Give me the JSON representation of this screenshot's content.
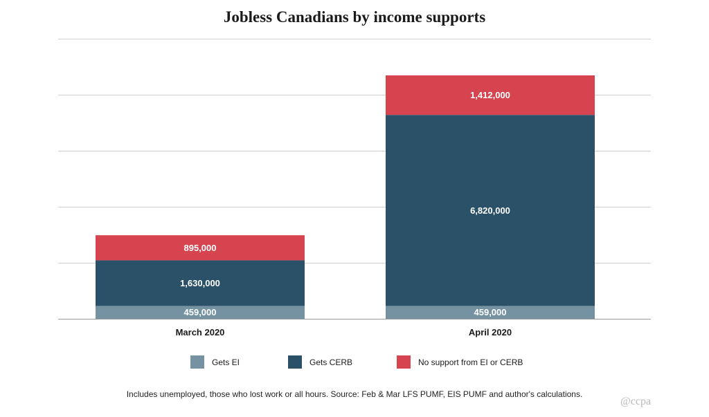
{
  "chart_data": {
    "type": "bar",
    "stacked": true,
    "title": "Jobless Canadians by income supports",
    "categories": [
      "March 2020",
      "April 2020"
    ],
    "series": [
      {
        "name": "Gets EI",
        "color": "#7592a3",
        "values": [
          459000,
          459000
        ],
        "labels": [
          "459,000",
          "459,000"
        ]
      },
      {
        "name": "Gets CERB",
        "color": "#2b5168",
        "values": [
          1630000,
          6820000
        ],
        "labels": [
          "1,630,000",
          "6,820,000"
        ]
      },
      {
        "name": "No support from EI or CERB",
        "color": "#d5444f",
        "values": [
          895000,
          1412000
        ],
        "labels": [
          "895,000",
          "1,412,000"
        ]
      }
    ],
    "ylim": [
      0,
      10000000
    ],
    "grid": true,
    "legend": "bottom"
  },
  "footer": {
    "source": "Includes unemployed, those who lost work or all hours. Source: Feb & Mar LFS PUMF, EIS PUMF and author's calculations.",
    "credit": "@ccpa"
  }
}
